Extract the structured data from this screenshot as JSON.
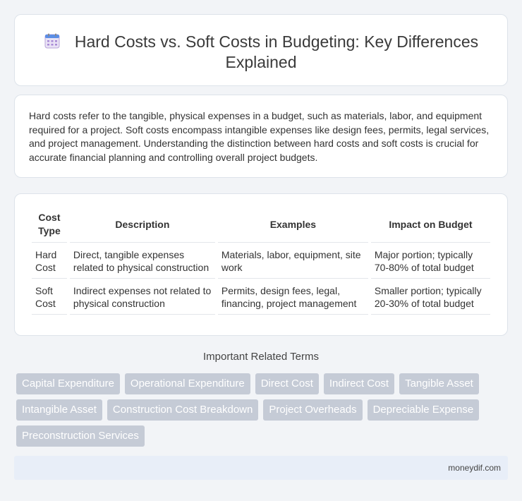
{
  "header": {
    "title": "Hard Costs vs. Soft Costs in Budgeting: Key Differences Explained",
    "icon": "calendar-icon"
  },
  "intro": {
    "text": "Hard costs refer to the tangible, physical expenses in a budget, such as materials, labor, and equipment required for a project. Soft costs encompass intangible expenses like design fees, permits, legal services, and project management. Understanding the distinction between hard costs and soft costs is crucial for accurate financial planning and controlling overall project budgets."
  },
  "table": {
    "headers": [
      "Cost Type",
      "Description",
      "Examples",
      "Impact on Budget"
    ],
    "rows": [
      [
        "Hard Cost",
        "Direct, tangible expenses related to physical construction",
        "Materials, labor, equipment, site work",
        "Major portion; typically 70-80% of total budget"
      ],
      [
        "Soft Cost",
        "Indirect expenses not related to physical construction",
        "Permits, design fees, legal, financing, project management",
        "Smaller portion; typically 20-30% of total budget"
      ]
    ]
  },
  "related": {
    "title": "Important Related Terms",
    "tags": [
      "Capital Expenditure",
      "Operational Expenditure",
      "Direct Cost",
      "Indirect Cost",
      "Tangible Asset",
      "Intangible Asset",
      "Construction Cost Breakdown",
      "Project Overheads",
      "Depreciable Expense",
      "Preconstruction Services"
    ]
  },
  "footer": {
    "site": "moneydif.com"
  },
  "colors": {
    "tag_bg": "#c5cbd6",
    "footer_bg": "#e8eef8",
    "page_bg": "#f2f4f7"
  }
}
